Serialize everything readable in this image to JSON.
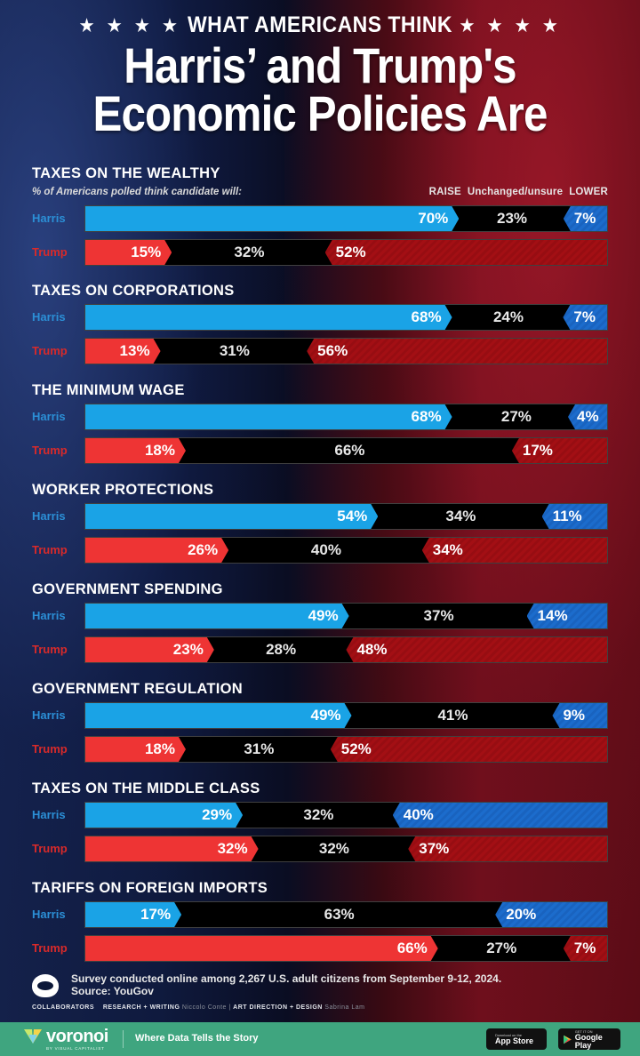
{
  "header": {
    "kicker": "WHAT AMERICANS THINK",
    "stars_left": "★ ★ ★ ★",
    "stars_right": "★ ★ ★ ★",
    "title_line1": "Harris’ and Trump's",
    "title_line2": "Economic Policies Are"
  },
  "subtitle": "% of Americans polled think candidate will:",
  "legend": {
    "raise": "RAISE",
    "unchanged": "Unchanged/unsure",
    "lower": "LOWER"
  },
  "candidates": {
    "harris": "Harris",
    "trump": "Trump"
  },
  "colors": {
    "harris_raise": "#1aa3e6",
    "harris_lower": "#1c6ccc",
    "trump_raise": "#ee3434",
    "trump_lower": "#a30f14",
    "unchanged": "#000000",
    "brand_green": "#3fa57f"
  },
  "chart_data": {
    "type": "bar",
    "stacked": true,
    "orientation": "horizontal",
    "title": "What Americans Think Harris’ and Trump's Economic Policies Are",
    "subtitle": "% of Americans polled think candidate will:",
    "series_names": [
      "RAISE",
      "Unchanged/unsure",
      "LOWER"
    ],
    "categories": [
      "TAXES ON THE WEALTHY",
      "TAXES ON CORPORATIONS",
      "THE MINIMUM WAGE",
      "WORKER PROTECTIONS",
      "GOVERNMENT SPENDING",
      "GOVERNMENT REGULATION",
      "TAXES ON THE MIDDLE CLASS",
      "TARIFFS ON FOREIGN IMPORTS"
    ],
    "sections": [
      {
        "title": "TAXES ON THE WEALTHY",
        "harris": {
          "raise": 70,
          "unchanged": 23,
          "lower": 7
        },
        "trump": {
          "raise": 15,
          "unchanged": 32,
          "lower": 52
        }
      },
      {
        "title": "TAXES ON CORPORATIONS",
        "harris": {
          "raise": 68,
          "unchanged": 24,
          "lower": 7
        },
        "trump": {
          "raise": 13,
          "unchanged": 31,
          "lower": 56
        }
      },
      {
        "title": "THE MINIMUM WAGE",
        "harris": {
          "raise": 68,
          "unchanged": 27,
          "lower": 4
        },
        "trump": {
          "raise": 18,
          "unchanged": 66,
          "lower": 17
        }
      },
      {
        "title": "WORKER PROTECTIONS",
        "harris": {
          "raise": 54,
          "unchanged": 34,
          "lower": 11
        },
        "trump": {
          "raise": 26,
          "unchanged": 40,
          "lower": 34
        }
      },
      {
        "title": "GOVERNMENT SPENDING",
        "harris": {
          "raise": 49,
          "unchanged": 37,
          "lower": 14
        },
        "trump": {
          "raise": 23,
          "unchanged": 28,
          "lower": 48
        }
      },
      {
        "title": "GOVERNMENT REGULATION",
        "harris": {
          "raise": 49,
          "unchanged": 41,
          "lower": 9
        },
        "trump": {
          "raise": 18,
          "unchanged": 31,
          "lower": 52
        }
      },
      {
        "title": "TAXES ON THE MIDDLE CLASS",
        "harris": {
          "raise": 29,
          "unchanged": 32,
          "lower": 40
        },
        "trump": {
          "raise": 32,
          "unchanged": 32,
          "lower": 37
        }
      },
      {
        "title": "TARIFFS ON FOREIGN IMPORTS",
        "harris": {
          "raise": 17,
          "unchanged": 63,
          "lower": 20
        },
        "trump": {
          "raise": 66,
          "unchanged": 27,
          "lower": 7
        }
      }
    ],
    "xlim": [
      0,
      100
    ],
    "unit": "%",
    "grid": false
  },
  "footer": {
    "note": "Survey conducted online among 2,267 U.S. adult citizens from September 9-12, 2024.",
    "source": "Source: YouGov",
    "collaborators_label": "COLLABORATORS",
    "research_label": "RESEARCH + WRITING",
    "research_name": "Niccolo Conte",
    "art_label": "ART DIRECTION + DESIGN",
    "art_name": "Sabrina Lam",
    "separator": "|"
  },
  "brand": {
    "name": "voronoi",
    "sub": "BY VISUAL CAPITALIST",
    "tagline": "Where Data Tells the Story",
    "app_store_small": "Download on the",
    "app_store_big": "App Store",
    "google_small": "GET IT ON",
    "google_big": "Google Play"
  }
}
